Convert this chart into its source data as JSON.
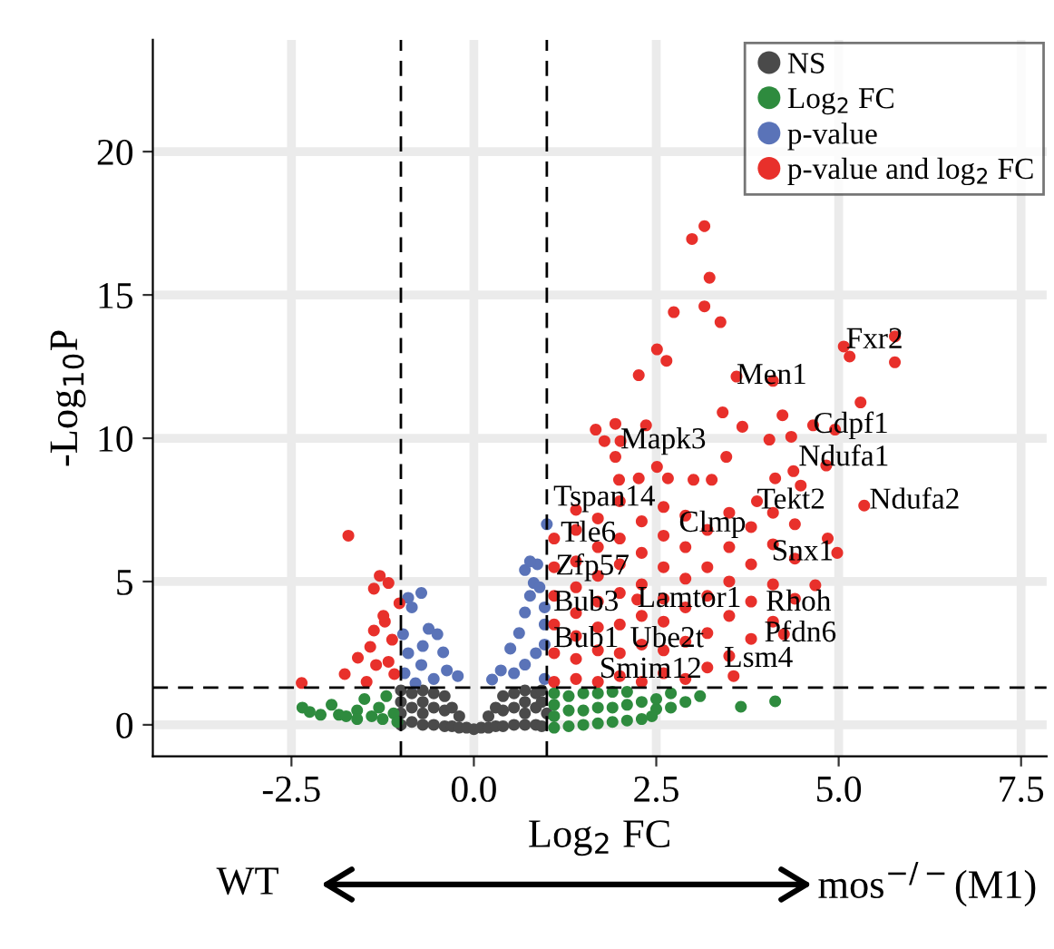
{
  "chart_data": {
    "type": "scatter",
    "xlabel": "Log$_{2}$ FC",
    "ylabel": "-Log$_{10}$P",
    "xlim": [
      -4.4,
      7.85
    ],
    "ylim": [
      -1.1,
      23.9
    ],
    "xticks": [
      {
        "value": -2.5,
        "label": "-2.5"
      },
      {
        "value": 0,
        "label": "0.0"
      },
      2.5,
      {
        "value": 5,
        "label": "5.0"
      },
      7.5
    ],
    "yticks": [
      0,
      5,
      10,
      15,
      20
    ],
    "grid": true,
    "legend": "top right",
    "marker": "circle",
    "ref_lines": [
      {
        "axis": "x",
        "value": -1,
        "line_style": "dashed",
        "color": "#000000"
      },
      {
        "axis": "x",
        "value": 1,
        "line_style": "dashed",
        "color": "#000000"
      },
      {
        "axis": "y",
        "value": 1.3,
        "line_style": "dashed",
        "color": "#000000"
      }
    ],
    "series": [
      {
        "name": "NS",
        "color": "#4a4a4a",
        "x": [
          -1.0,
          -1.0,
          -1.0,
          -1.0,
          -0.85,
          -0.85,
          -0.85,
          -0.7,
          -0.7,
          -0.7,
          -0.7,
          -0.55,
          -0.55,
          -0.55,
          -0.4,
          -0.4,
          -0.4,
          -0.3,
          -0.3,
          -0.2,
          -0.2,
          -0.1,
          0.0,
          0.1,
          0.2,
          0.2,
          0.3,
          0.3,
          0.4,
          0.4,
          0.4,
          0.55,
          0.55,
          0.55,
          0.7,
          0.7,
          0.7,
          0.7,
          0.85,
          0.85,
          0.85,
          0.93,
          1.0,
          0.93,
          0.93
        ],
        "values": [
          0.0,
          0.4,
          0.8,
          1.2,
          0.1,
          0.6,
          1.1,
          0.0,
          0.4,
          0.8,
          1.2,
          0.0,
          0.6,
          1.1,
          -0.05,
          0.5,
          1.0,
          -0.05,
          0.6,
          -0.1,
          0.3,
          -0.1,
          -0.15,
          -0.1,
          -0.1,
          0.3,
          -0.05,
          0.6,
          -0.05,
          0.5,
          1.0,
          0.0,
          0.6,
          1.1,
          0.0,
          0.4,
          0.8,
          1.2,
          0.0,
          0.6,
          1.1,
          -0.05,
          0.4,
          0.8,
          1.2
        ]
      },
      {
        "name": "Log$_{2}$ FC",
        "color": "#2e8b3e",
        "x": [
          -2.35,
          -2.25,
          -2.1,
          -1.95,
          -1.85,
          -1.75,
          -1.6,
          -1.6,
          -1.5,
          -1.4,
          -1.3,
          -1.25,
          -1.2,
          -1.1,
          -1.05,
          1.1,
          1.1,
          1.1,
          1.1,
          1.3,
          1.3,
          1.3,
          1.5,
          1.5,
          1.5,
          1.7,
          1.7,
          1.7,
          1.9,
          1.9,
          1.9,
          2.1,
          2.1,
          2.1,
          2.3,
          2.3,
          2.5,
          2.5,
          2.44,
          2.7,
          2.7,
          2.9,
          3.1,
          3.66,
          4.13
        ],
        "values": [
          0.6,
          0.45,
          0.35,
          0.7,
          0.35,
          0.3,
          0.5,
          0.2,
          0.9,
          0.3,
          0.6,
          0.2,
          1.0,
          0.4,
          0.1,
          -0.1,
          0.3,
          0.7,
          1.1,
          -0.05,
          0.5,
          1.0,
          0.0,
          0.5,
          1.1,
          0.05,
          0.6,
          1.1,
          0.1,
          0.6,
          1.15,
          0.15,
          0.7,
          1.15,
          0.2,
          0.8,
          0.55,
          0.9,
          0.3,
          0.6,
          1.1,
          0.8,
          1.0,
          0.63,
          0.82
        ]
      },
      {
        "name": "p-value",
        "color": "#5a73b8",
        "x": [
          -0.9,
          -0.72,
          -0.85,
          -0.62,
          -0.5,
          -0.42,
          -0.97,
          -0.72,
          -0.9,
          -0.37,
          -0.22,
          -0.55,
          -0.8,
          -0.95,
          -0.7,
          1.0,
          0.7,
          0.87,
          0.82,
          0.5,
          0.7,
          0.77,
          0.9,
          0.37,
          0.25,
          0.62,
          0.97,
          0.85,
          0.7,
          0.55,
          0.97,
          0.97,
          0.97,
          0.77
        ],
        "values": [
          4.43,
          4.6,
          4.1,
          3.35,
          3.16,
          2.53,
          3.16,
          2.09,
          2.5,
          1.9,
          1.7,
          1.6,
          1.45,
          1.8,
          2.75,
          7.0,
          5.4,
          5.6,
          4.95,
          2.66,
          3.92,
          4.5,
          4.8,
          1.9,
          1.58,
          3.2,
          3.5,
          2.5,
          2.1,
          1.8,
          1.6,
          2.8,
          4.1,
          5.7
        ]
      },
      {
        "name": "p-value and log$_{2}$ FC",
        "color": "#e8302b",
        "x": [
          -1.72,
          -2.36,
          -1.77,
          -1.37,
          -1.29,
          -1.17,
          -1.02,
          -1.42,
          -1.37,
          -1.22,
          -1.12,
          -1.34,
          -1.17,
          -1.47,
          -1.09,
          -1.59,
          -1.24,
          3.16,
          2.99,
          3.23,
          2.74,
          3.16,
          3.38,
          2.51,
          2.64,
          2.26,
          5.07,
          5.15,
          5.77,
          5.77,
          5.3,
          4.1,
          3.41,
          4.23,
          3.68,
          4.05,
          4.35,
          4.95,
          4.83,
          5.35,
          1.67,
          1.94,
          1.79,
          1.94,
          2.36,
          2.51,
          3.46,
          1.99,
          2.26,
          2.66,
          3.01,
          3.26,
          4.13,
          4.38,
          4.48,
          4.85,
          4.98,
          4.68,
          4.25,
          3.56,
          1.1,
          1.1,
          1.1,
          1.1,
          1.1,
          1.1,
          1.4,
          1.4,
          1.4,
          1.4,
          1.4,
          1.4,
          1.4,
          1.4,
          1.7,
          1.7,
          1.7,
          1.7,
          1.7,
          1.7,
          1.7,
          2.0,
          2.0,
          2.0,
          2.0,
          2.0,
          2.0,
          2.0,
          2.3,
          2.3,
          2.3,
          2.3,
          2.3,
          2.3,
          2.6,
          2.6,
          2.6,
          2.6,
          2.6,
          2.6,
          2.6,
          2.9,
          2.9,
          2.9,
          2.9,
          2.9,
          2.9,
          3.2,
          3.2,
          3.2,
          3.2,
          3.2,
          3.5,
          3.5,
          3.5,
          3.5,
          3.5,
          3.8,
          3.8,
          3.8,
          3.8,
          4.1,
          4.1,
          4.1,
          4.1,
          4.4,
          4.4,
          4.4,
          3.6,
          4.65,
          3.88,
          2.01,
          2.24
        ],
        "values": [
          6.6,
          1.46,
          1.77,
          4.75,
          5.2,
          4.95,
          4.24,
          2.72,
          3.29,
          3.6,
          2.97,
          2.09,
          2.2,
          1.5,
          1.77,
          2.34,
          3.8,
          17.4,
          16.95,
          15.6,
          14.4,
          14.6,
          14.05,
          13.1,
          12.7,
          12.2,
          13.2,
          12.85,
          13.55,
          12.65,
          11.25,
          12.0,
          10.9,
          10.8,
          10.4,
          9.95,
          10.05,
          10.3,
          9.05,
          7.65,
          10.3,
          10.5,
          9.9,
          9.35,
          10.45,
          9.0,
          9.35,
          8.55,
          8.6,
          8.6,
          8.55,
          8.55,
          8.6,
          8.85,
          8.35,
          6.5,
          6.0,
          4.87,
          3.16,
          1.7,
          1.5,
          2.5,
          3.5,
          4.5,
          5.5,
          6.5,
          1.6,
          2.3,
          3.1,
          3.9,
          4.8,
          5.7,
          6.8,
          7.5,
          1.5,
          2.6,
          3.4,
          4.3,
          5.2,
          6.2,
          7.2,
          1.7,
          2.5,
          3.5,
          4.6,
          5.6,
          6.5,
          7.8,
          1.5,
          2.8,
          3.8,
          4.9,
          6.0,
          7.1,
          1.8,
          2.6,
          3.6,
          4.4,
          5.5,
          6.6,
          7.6,
          1.6,
          2.9,
          4.1,
          5.1,
          6.2,
          7.3,
          2.0,
          3.2,
          4.5,
          5.5,
          6.8,
          2.4,
          3.8,
          5.0,
          6.2,
          7.4,
          3.0,
          4.3,
          5.6,
          6.9,
          3.6,
          4.9,
          6.3,
          7.4,
          4.4,
          5.8,
          7.0,
          12.15,
          10.45,
          7.8,
          9.9,
          4.37
        ]
      }
    ],
    "annotations": [
      {
        "text": "Fxr2",
        "x": 5.1,
        "y": 13.4
      },
      {
        "text": "Men1",
        "x": 3.6,
        "y": 12.15
      },
      {
        "text": "Cdpf1",
        "x": 4.65,
        "y": 10.45
      },
      {
        "text": "Ndufa1",
        "x": 4.45,
        "y": 9.3
      },
      {
        "text": "Ndufa2",
        "x": 5.42,
        "y": 7.8
      },
      {
        "text": "Tekt2",
        "x": 3.88,
        "y": 7.8
      },
      {
        "text": "Mapk3",
        "x": 2.01,
        "y": 9.9
      },
      {
        "text": "Tspan14",
        "x": 1.09,
        "y": 7.9
      },
      {
        "text": "Tle6",
        "x": 1.19,
        "y": 6.65
      },
      {
        "text": "Zfp57",
        "x": 1.12,
        "y": 5.5
      },
      {
        "text": "Clmp",
        "x": 2.81,
        "y": 7.0
      },
      {
        "text": "Snx1",
        "x": 4.08,
        "y": 6.0
      },
      {
        "text": "Lamtor1",
        "x": 2.24,
        "y": 4.37
      },
      {
        "text": "Rhoh",
        "x": 4.0,
        "y": 4.24
      },
      {
        "text": "Bub3",
        "x": 1.09,
        "y": 4.24
      },
      {
        "text": "Bub1",
        "x": 1.09,
        "y": 2.97
      },
      {
        "text": "Ube2t",
        "x": 2.14,
        "y": 2.97
      },
      {
        "text": "Pfdn6",
        "x": 3.98,
        "y": 3.16
      },
      {
        "text": "Lsm4",
        "x": 3.43,
        "y": 2.28
      },
      {
        "text": "Smim12",
        "x": 1.72,
        "y": 1.9
      },
      "WT",
      "mos$^{−/−}$(M1)"
    ]
  }
}
